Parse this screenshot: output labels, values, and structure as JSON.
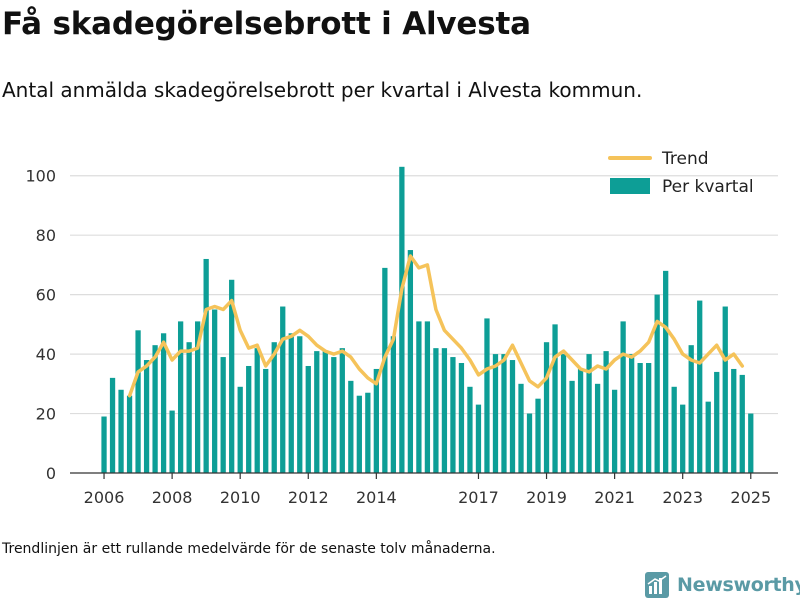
{
  "header": {
    "title": "Få skadegörelsebrott i Alvesta",
    "subtitle": "Antal anmälda skadegörelsebrott per kvartal i Alvesta kommun."
  },
  "footer": {
    "note": "Trendlinjen är ett rullande medelvärde för de senaste tolv månaderna.",
    "brand": "Newsworthy"
  },
  "colors": {
    "bars": "#0d9e96",
    "trend": "#f5c35a",
    "grid": "#dddddd",
    "axis": "#333333",
    "brand": "#5a9aa5"
  },
  "chart_data": {
    "type": "bar",
    "title": "Få skadegörelsebrott i Alvesta",
    "subtitle": "Antal anmälda skadegörelsebrott per kvartal i Alvesta kommun.",
    "ylim": [
      0,
      110
    ],
    "yticks": [
      0,
      20,
      40,
      60,
      80,
      100
    ],
    "xlim": [
      2005.0,
      2025.8
    ],
    "xticks": [
      2006,
      2008,
      2010,
      2012,
      2014,
      2017,
      2019,
      2021,
      2023,
      2025
    ],
    "grid": true,
    "legend_position": "top-right",
    "legend": [
      "Trend",
      "Per kvartal"
    ],
    "series": [
      {
        "name": "Per kvartal",
        "type": "bar",
        "start_year": 2006,
        "start_quarter": 1,
        "values": [
          19,
          32,
          28,
          26,
          48,
          38,
          43,
          47,
          21,
          51,
          44,
          51,
          72,
          55,
          39,
          65,
          29,
          36,
          42,
          35,
          44,
          56,
          47,
          46,
          36,
          41,
          41,
          39,
          42,
          31,
          26,
          27,
          35,
          69,
          46,
          103,
          75,
          51,
          51,
          42,
          42,
          39,
          37,
          29,
          23,
          52,
          40,
          40,
          38,
          30,
          20,
          25,
          44,
          50,
          40,
          31,
          35,
          40,
          30,
          41,
          28,
          51,
          40,
          37,
          37,
          60,
          68,
          29,
          23,
          43,
          58,
          24,
          34,
          56,
          35,
          33,
          20
        ]
      },
      {
        "name": "Trend",
        "type": "line",
        "start_year": 2006,
        "start_quarter": 4,
        "values": [
          26,
          34,
          36,
          39,
          44,
          38,
          41,
          41,
          42,
          55,
          56,
          55,
          58,
          48,
          42,
          43,
          36,
          40,
          45,
          46,
          48,
          46,
          43,
          41,
          40,
          41,
          39,
          35,
          32,
          30,
          39,
          45,
          62,
          73,
          69,
          70,
          55,
          48,
          45,
          42,
          38,
          33,
          35,
          36,
          38,
          43,
          37,
          31,
          29,
          32,
          39,
          41,
          38,
          35,
          34,
          36,
          35,
          38,
          40,
          39,
          41,
          44,
          51,
          49,
          45,
          40,
          38,
          37,
          40,
          43,
          38,
          40,
          36
        ]
      }
    ]
  }
}
